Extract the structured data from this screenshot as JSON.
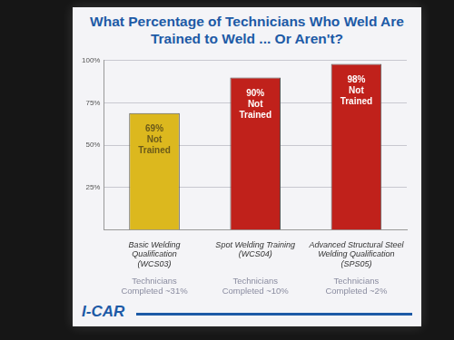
{
  "chart_data": {
    "type": "bar",
    "title": "What Percentage of Technicians Who Weld Are Trained to Weld ... Or Aren't?",
    "categories": [
      "Basic Welding Qualification",
      "Spot Welding Training",
      "Advanced Structural Steel Welding Qualification"
    ],
    "category_codes": [
      "(WCS03)",
      "(WCS04)",
      "(SPS05)"
    ],
    "values": [
      69,
      90,
      98
    ],
    "value_labels": [
      "69% Not Trained",
      "90% Not Trained",
      "98% Not Trained"
    ],
    "data_labels": true,
    "colors": [
      "#dcb81e",
      "#c0211b",
      "#c0211b"
    ],
    "ylim": [
      0,
      100
    ],
    "yticks": [
      {
        "value": 25,
        "label": "25%"
      },
      {
        "value": 50,
        "label": "50%"
      },
      {
        "value": 75,
        "label": "75%"
      },
      {
        "value": 100,
        "label": "100%"
      }
    ],
    "grid": true,
    "footnotes": [
      "Technicians Completed ~31%",
      "Technicians Completed ~10%",
      "Technicians Completed ~2%"
    ]
  },
  "logo": "I-CAR"
}
